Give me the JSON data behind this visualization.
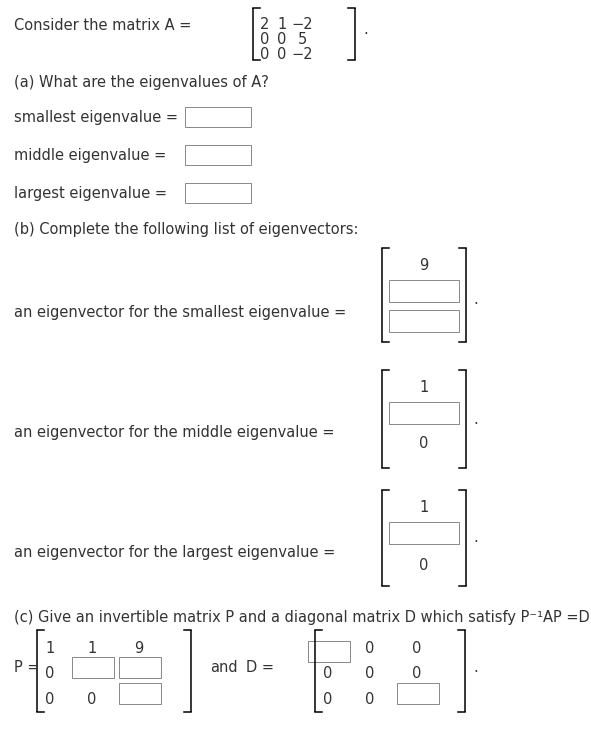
{
  "bg_color": "#ffffff",
  "text_color": "#333333",
  "matrix_rows": [
    [
      "2",
      "1",
      "−2"
    ],
    [
      "0",
      "0",
      "5"
    ],
    [
      "0",
      "0",
      "−2"
    ]
  ],
  "part_a_header": "(a) What are the eigenvalues of A?",
  "part_a_labels": [
    "smallest eigenvalue =",
    "middle eigenvalue =",
    "largest eigenvalue ="
  ],
  "part_b_header": "(b) Complete the following list of eigenvectors:",
  "eigvec_labels": [
    "an eigenvector for the smallest eigenvalue =",
    "an eigenvector for the middle eigenvalue =",
    "an eigenvector for the largest eigenvalue ="
  ],
  "part_c_header": "(c) Give an invertible matrix P and a diagonal matrix D which satisfy P⁻¹AP =D:",
  "fs": 10.5,
  "box_color": "#888888"
}
